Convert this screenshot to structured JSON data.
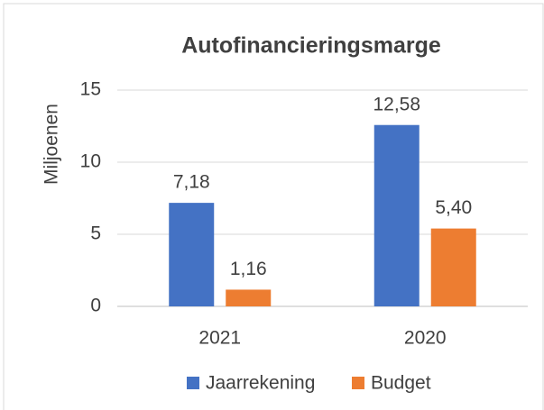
{
  "chart_data": {
    "type": "bar",
    "title": "Autofinancieringsmarge",
    "y_label": "Miljoenen",
    "categories": [
      "2021",
      "2020"
    ],
    "series": [
      {
        "name": "Jaarrekening",
        "color": "#4472c4",
        "values": [
          7.18,
          12.58
        ],
        "value_labels": [
          "7,18",
          "12,58"
        ]
      },
      {
        "name": "Budget",
        "color": "#ed7d31",
        "values": [
          1.16,
          5.4
        ],
        "value_labels": [
          "1,16",
          "5,40"
        ]
      }
    ],
    "ylim": [
      0,
      15
    ],
    "yticks": [
      0,
      5,
      10,
      15
    ],
    "grid": true,
    "legend": "bottom"
  }
}
